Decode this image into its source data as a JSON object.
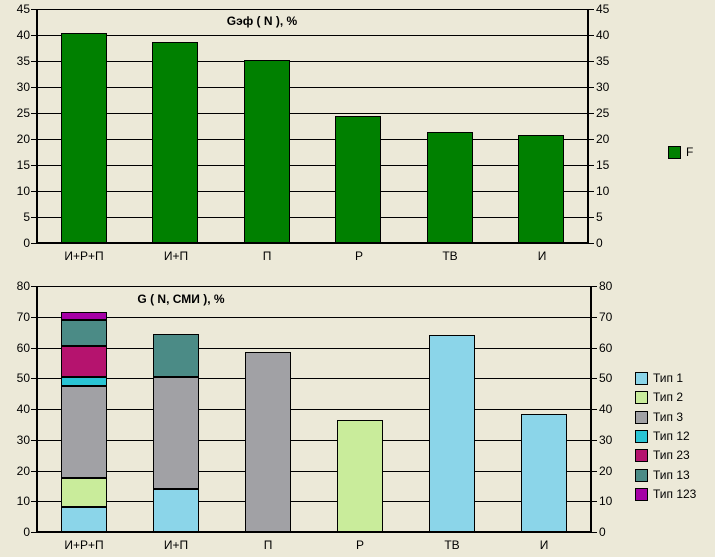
{
  "background_color": "#ECE9D8",
  "text_color": "#000000",
  "chart_data": [
    {
      "type": "bar",
      "title": "Gэф ( N ), %",
      "categories": [
        "И+Р+П",
        "И+П",
        "П",
        "Р",
        "ТВ",
        "И"
      ],
      "series": [
        {
          "name": "F",
          "color": "#008000",
          "values": [
            40.3,
            38.7,
            35.2,
            24.5,
            21.3,
            20.7
          ]
        }
      ],
      "ylim": [
        0,
        45
      ],
      "yticks": [
        0,
        5,
        10,
        15,
        20,
        25,
        30,
        35,
        40,
        45
      ],
      "grid": true,
      "dual_y_axis": true,
      "legend_position": "right"
    },
    {
      "type": "bar",
      "stacked": true,
      "title": "G ( N, СМИ ), %",
      "categories": [
        "И+Р+П",
        "И+П",
        "П",
        "Р",
        "ТВ",
        "И"
      ],
      "series": [
        {
          "name": "Тип 1",
          "color": "#8BD5E9",
          "values": [
            8,
            14,
            0,
            0,
            64,
            38.5
          ]
        },
        {
          "name": "Тип 2",
          "color": "#C9EC9B",
          "values": [
            9.5,
            0,
            0,
            36.5,
            0,
            0
          ]
        },
        {
          "name": "Тип 3",
          "color": "#A1A1A5",
          "values": [
            30,
            36.5,
            58.5,
            0,
            0,
            0
          ]
        },
        {
          "name": "Тип 12",
          "color": "#2AC4D4",
          "values": [
            3,
            0,
            0,
            0,
            0,
            0
          ]
        },
        {
          "name": "Тип 23",
          "color": "#B5136E",
          "values": [
            10,
            0,
            0,
            0,
            0,
            0
          ]
        },
        {
          "name": "Тип 13",
          "color": "#4B8B86",
          "values": [
            8.5,
            14,
            0,
            0,
            0,
            0
          ]
        },
        {
          "name": "Тип 123",
          "color": "#A500A5",
          "values": [
            2.5,
            0,
            0,
            0,
            0,
            0
          ]
        }
      ],
      "ylim": [
        0,
        80
      ],
      "yticks": [
        0,
        10,
        20,
        30,
        40,
        50,
        60,
        70,
        80
      ],
      "grid": true,
      "dual_y_axis": true,
      "legend_position": "right"
    }
  ]
}
